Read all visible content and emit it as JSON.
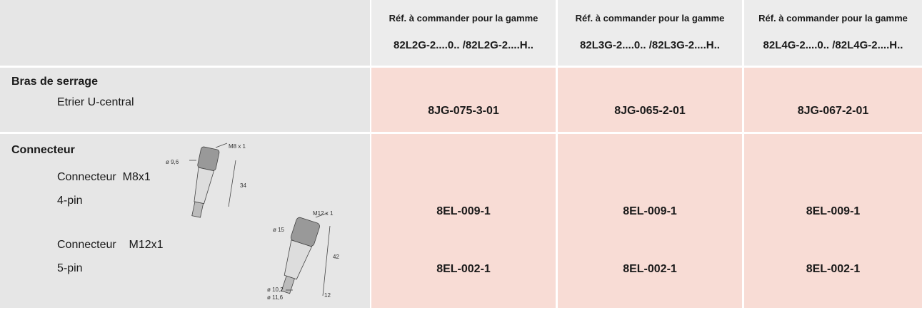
{
  "header": {
    "columns": [
      {
        "line1": "Réf. à commander pour la gamme",
        "line2": "82L2G-2....0.. /82L2G-2....H.."
      },
      {
        "line1": "Réf. à commander pour la gamme",
        "line2": "82L3G-2....0.. /82L3G-2....H.."
      },
      {
        "line1": "Réf. à commander pour la gamme",
        "line2": "82L4G-2....0.. /82L4G-2....H.."
      }
    ]
  },
  "sections": [
    {
      "title": "Bras de serrage",
      "items": [
        {
          "label": "Etrier U-central",
          "values": [
            "8JG-075-3-01",
            "8JG-065-2-01",
            "8JG-067-2-01"
          ]
        }
      ]
    },
    {
      "title": "Connecteur",
      "items": [
        {
          "label": "Connecteur  M8x1",
          "sublabel": "4-pin",
          "values": [
            "8EL-009-1",
            "8EL-009-1",
            "8EL-009-1"
          ],
          "drawing_labels": [
            "M8 x 1",
            "ø 9,6",
            "34"
          ]
        },
        {
          "label": "Connecteur    M12x1",
          "sublabel": "5-pin",
          "values": [
            "8EL-002-1",
            "8EL-002-1",
            "8EL-002-1"
          ],
          "drawing_labels": [
            "M12 x 1",
            "ø 15",
            "42",
            "ø 10,2",
            "ø 11,6",
            "12"
          ]
        }
      ]
    }
  ]
}
